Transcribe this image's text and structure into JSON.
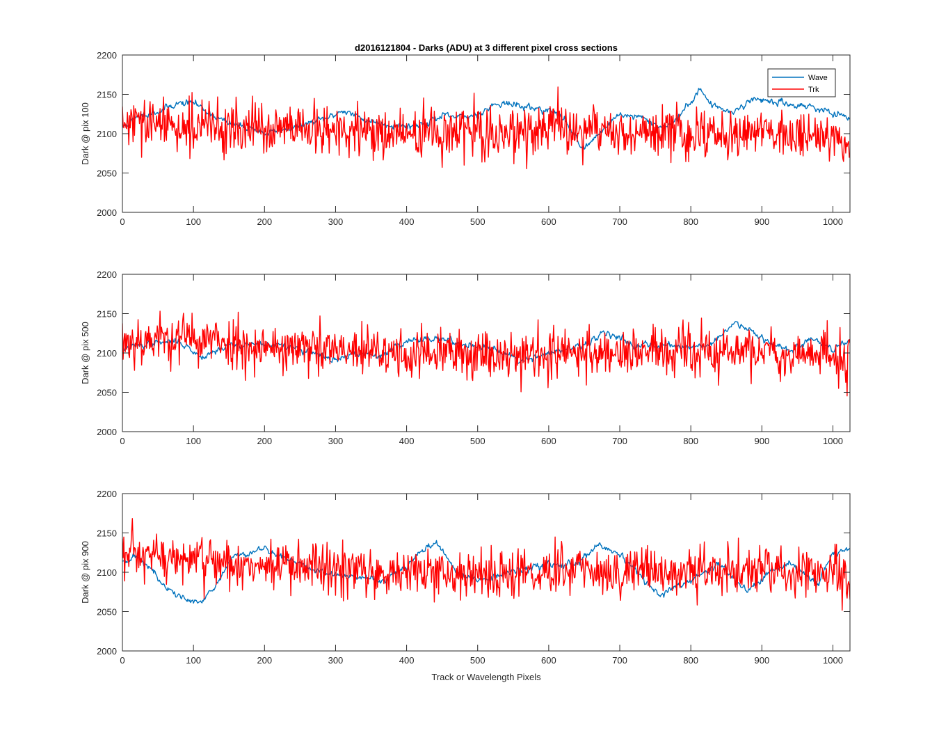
{
  "figure": {
    "title": "d2016121804 - Darks (ADU) at 3 different pixel cross sections",
    "xlabel": "Track or Wavelength Pixels"
  },
  "colors": {
    "wave": "#0072bd",
    "trk": "#ff0000",
    "axes": "#262626"
  },
  "legend": {
    "placement": "top-right of first subplot",
    "entries": [
      "Wave",
      "Trk"
    ]
  },
  "chart_data": [
    {
      "type": "line",
      "ylabel": "Dark @ pix 100",
      "xlim": [
        0,
        1024
      ],
      "ylim": [
        2000,
        2200
      ],
      "xticks": [
        0,
        100,
        200,
        300,
        400,
        500,
        600,
        700,
        800,
        900,
        1000
      ],
      "yticks": [
        2000,
        2050,
        2100,
        2150,
        2200
      ],
      "grid": false,
      "series": [
        {
          "name": "Wave",
          "color": "#0072bd",
          "noise": 4,
          "seed": 11,
          "control_x": [
            0,
            30,
            50,
            75,
            100,
            120,
            150,
            180,
            200,
            220,
            250,
            290,
            310,
            340,
            370,
            400,
            420,
            450,
            480,
            500,
            530,
            560,
            600,
            620,
            650,
            670,
            700,
            730,
            760,
            780,
            800,
            812,
            830,
            860,
            890,
            930,
            970,
            1000,
            1024
          ],
          "control_y": [
            2108,
            2125,
            2128,
            2138,
            2140,
            2128,
            2112,
            2108,
            2100,
            2104,
            2110,
            2120,
            2130,
            2118,
            2112,
            2110,
            2112,
            2122,
            2120,
            2125,
            2140,
            2135,
            2130,
            2120,
            2080,
            2100,
            2125,
            2120,
            2108,
            2118,
            2140,
            2158,
            2135,
            2128,
            2145,
            2138,
            2135,
            2125,
            2118
          ]
        },
        {
          "name": "Trk",
          "color": "#ff0000",
          "noise": 16,
          "seed": 29,
          "control_x": [
            0,
            100,
            200,
            300,
            400,
            500,
            600,
            700,
            800,
            900,
            1000,
            1024
          ],
          "control_y": [
            2112,
            2110,
            2105,
            2102,
            2100,
            2100,
            2105,
            2102,
            2100,
            2102,
            2098,
            2090
          ]
        }
      ]
    },
    {
      "type": "line",
      "ylabel": "Dark @ pix 500",
      "xlim": [
        0,
        1024
      ],
      "ylim": [
        2000,
        2200
      ],
      "xticks": [
        0,
        100,
        200,
        300,
        400,
        500,
        600,
        700,
        800,
        900,
        1000
      ],
      "yticks": [
        2000,
        2050,
        2100,
        2150,
        2200
      ],
      "grid": false,
      "series": [
        {
          "name": "Wave",
          "color": "#0072bd",
          "noise": 4,
          "seed": 37,
          "control_x": [
            0,
            40,
            80,
            110,
            150,
            200,
            250,
            300,
            330,
            360,
            400,
            440,
            470,
            500,
            530,
            560,
            600,
            650,
            680,
            720,
            760,
            800,
            830,
            865,
            900,
            940,
            970,
            1000,
            1024
          ],
          "control_y": [
            2105,
            2112,
            2115,
            2095,
            2110,
            2112,
            2105,
            2090,
            2100,
            2095,
            2115,
            2120,
            2112,
            2110,
            2105,
            2090,
            2100,
            2108,
            2128,
            2110,
            2110,
            2108,
            2112,
            2140,
            2120,
            2102,
            2118,
            2105,
            2118
          ]
        },
        {
          "name": "Trk",
          "color": "#ff0000",
          "noise": 16,
          "seed": 53,
          "control_x": [
            0,
            80,
            200,
            300,
            400,
            500,
            600,
            700,
            800,
            900,
            1000,
            1024
          ],
          "control_y": [
            2115,
            2120,
            2108,
            2102,
            2098,
            2100,
            2098,
            2102,
            2100,
            2102,
            2096,
            2090
          ]
        }
      ]
    },
    {
      "type": "line",
      "ylabel": "Dark @ pix 900",
      "xlim": [
        0,
        1024
      ],
      "ylim": [
        2000,
        2200
      ],
      "xticks": [
        0,
        100,
        200,
        300,
        400,
        500,
        600,
        700,
        800,
        900,
        1000
      ],
      "yticks": [
        2000,
        2050,
        2100,
        2150,
        2200
      ],
      "grid": false,
      "series": [
        {
          "name": "Wave",
          "color": "#0072bd",
          "noise": 4,
          "seed": 71,
          "control_x": [
            0,
            20,
            40,
            60,
            90,
            110,
            130,
            155,
            200,
            250,
            280,
            320,
            370,
            400,
            440,
            470,
            500,
            550,
            600,
            640,
            670,
            700,
            720,
            740,
            755,
            800,
            840,
            880,
            910,
            940,
            980,
            1000,
            1024
          ],
          "control_y": [
            2115,
            2120,
            2105,
            2080,
            2065,
            2060,
            2080,
            2120,
            2130,
            2110,
            2100,
            2095,
            2090,
            2110,
            2140,
            2100,
            2090,
            2100,
            2110,
            2110,
            2135,
            2120,
            2105,
            2085,
            2070,
            2090,
            2110,
            2075,
            2100,
            2110,
            2085,
            2125,
            2130
          ]
        },
        {
          "name": "Trk",
          "color": "#ff0000",
          "noise": 16,
          "seed": 97,
          "control_x": [
            0,
            100,
            200,
            300,
            400,
            500,
            600,
            700,
            800,
            900,
            1000,
            1024
          ],
          "control_y": [
            2120,
            2115,
            2108,
            2102,
            2100,
            2098,
            2100,
            2103,
            2100,
            2102,
            2098,
            2095
          ]
        }
      ]
    }
  ]
}
